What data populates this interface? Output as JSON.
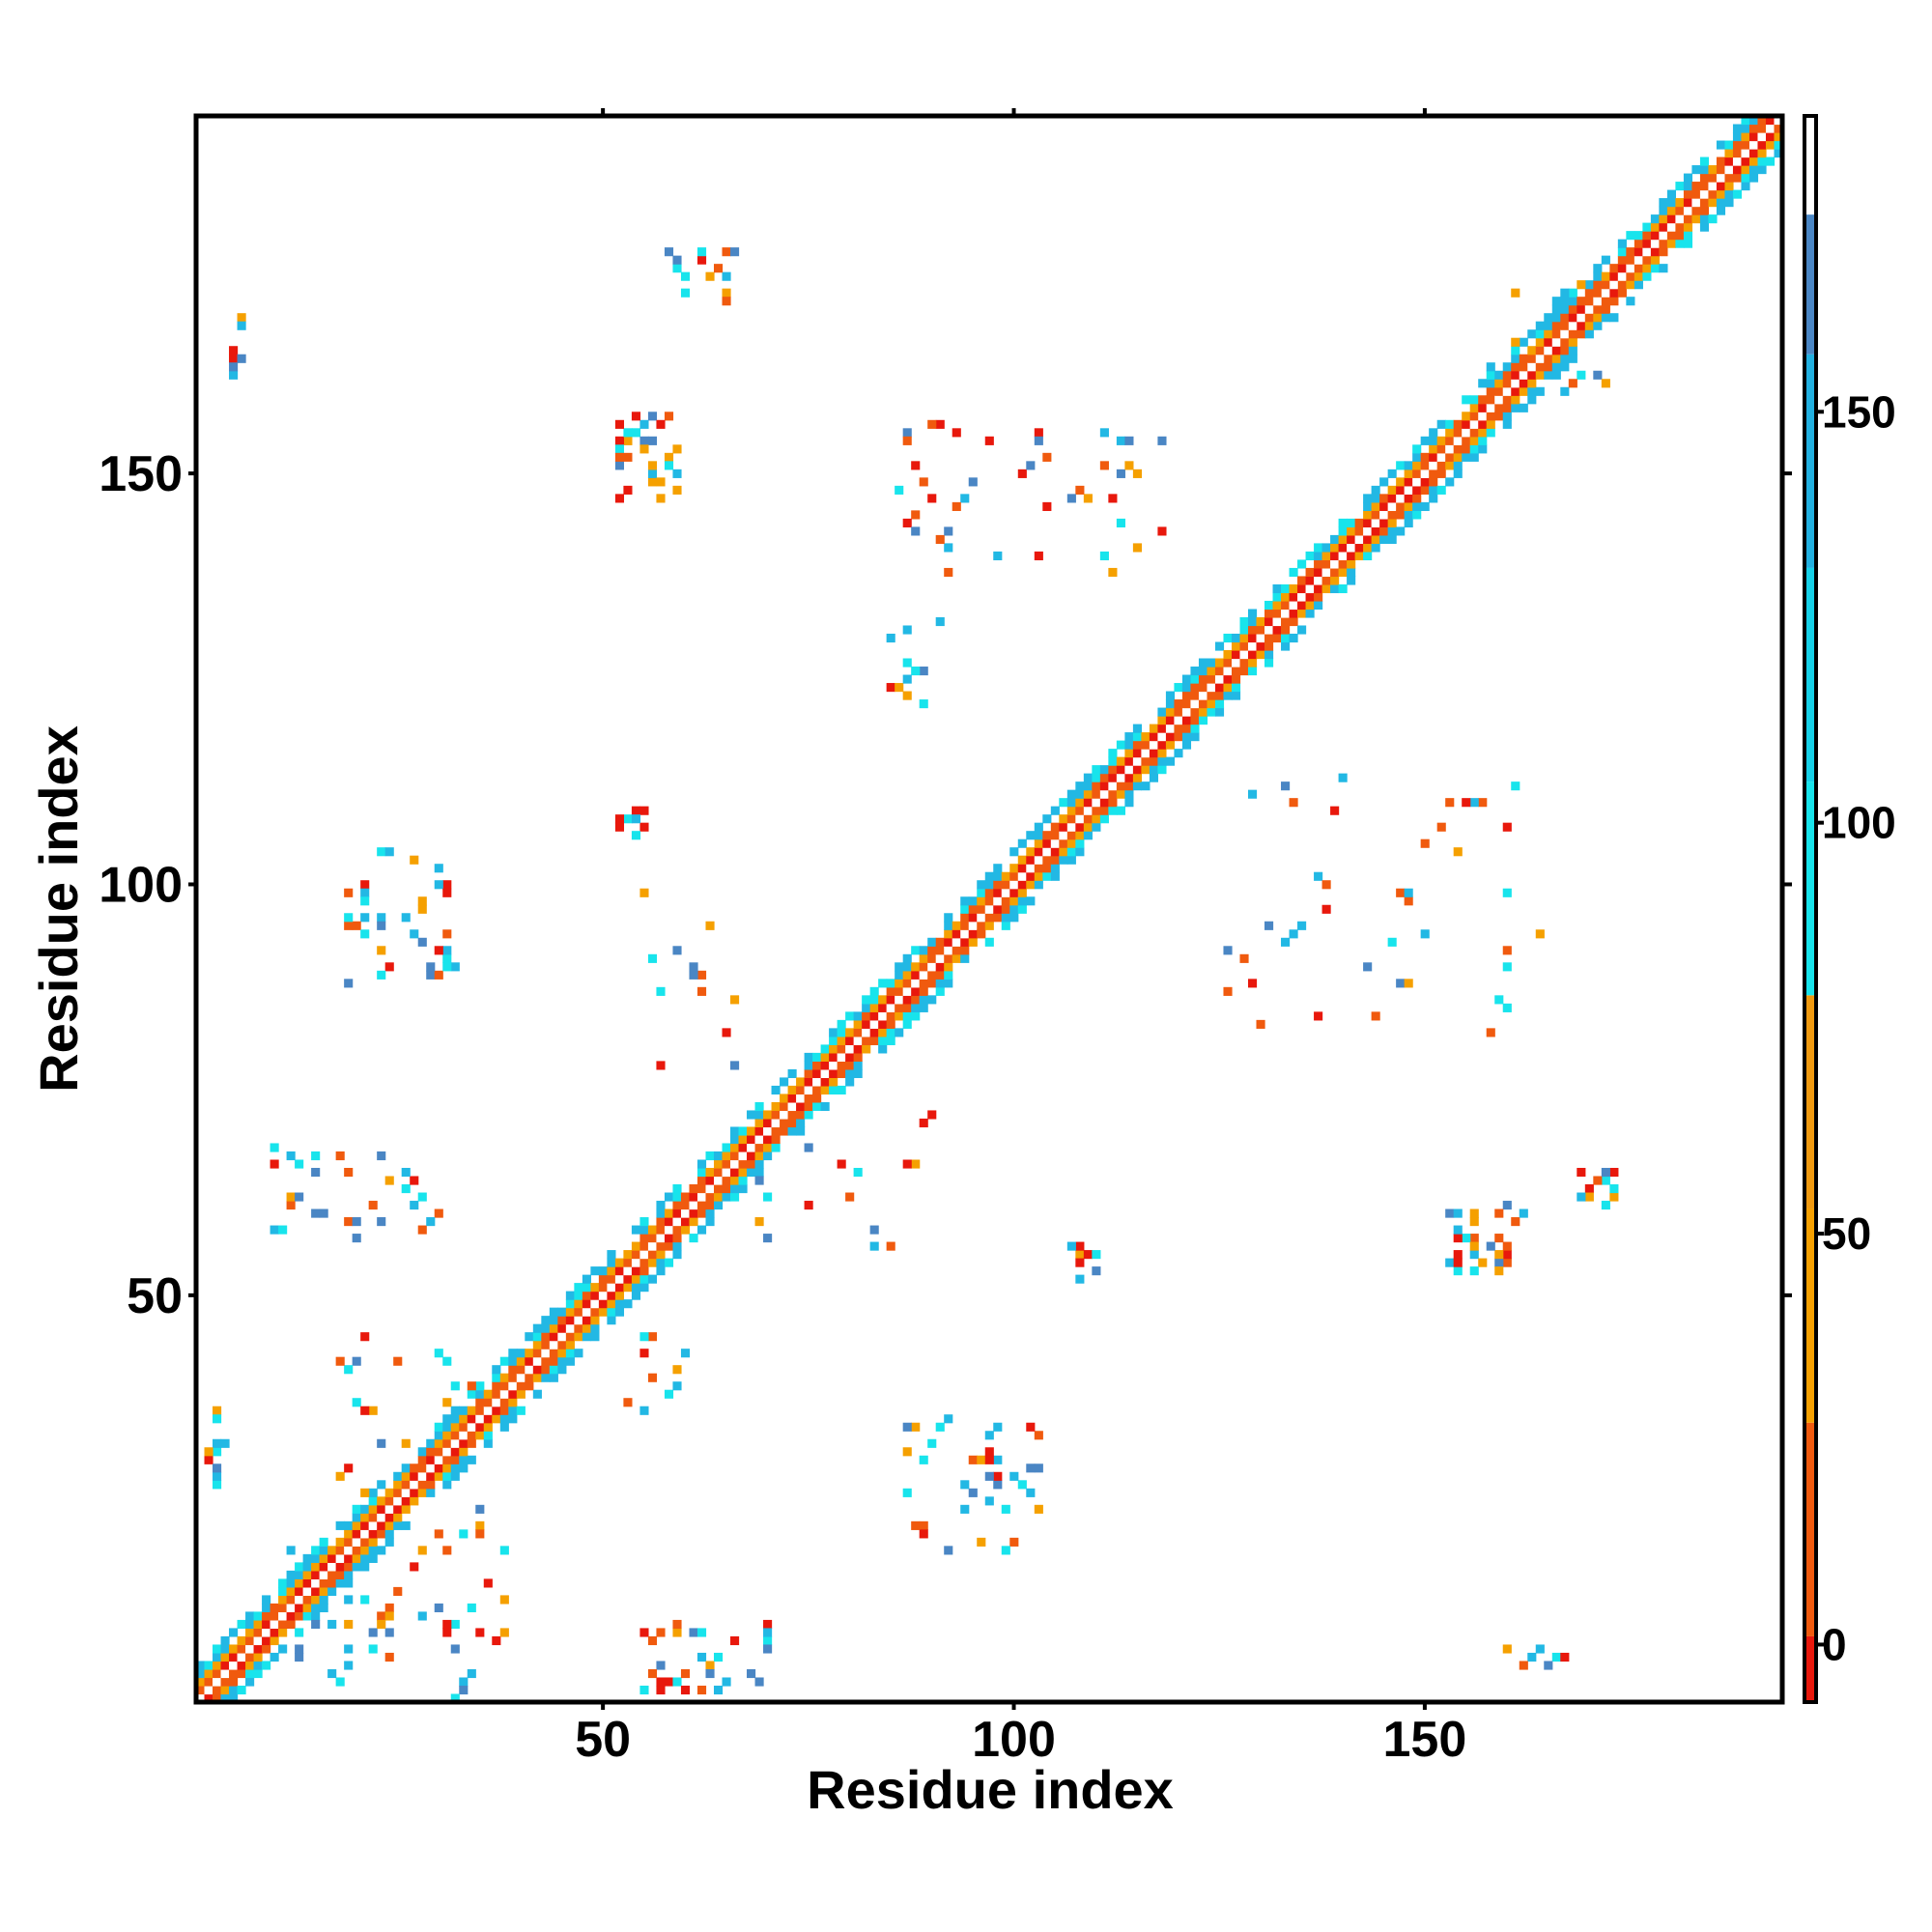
{
  "chart_data": {
    "type": "heatmap",
    "xlabel": "Residue index",
    "ylabel": "Residue index",
    "xlim": [
      1,
      193
    ],
    "ylim": [
      1,
      193
    ],
    "x_ticks": [
      {
        "value": 50,
        "label": "50"
      },
      {
        "value": 100,
        "label": "100"
      },
      {
        "value": 150,
        "label": "150"
      }
    ],
    "y_ticks": [
      {
        "value": 50,
        "label": "50"
      },
      {
        "value": 100,
        "label": "100"
      },
      {
        "value": 150,
        "label": "150"
      }
    ],
    "colorbar": {
      "range": [
        -7,
        186
      ],
      "ticks": [
        {
          "value": 0,
          "label": "0"
        },
        {
          "value": 50,
          "label": "50"
        },
        {
          "value": 100,
          "label": "100"
        },
        {
          "value": 150,
          "label": "150"
        }
      ],
      "bands": [
        {
          "from": -7,
          "to": 1,
          "color": "#e8180c"
        },
        {
          "from": 1,
          "to": 27,
          "color": "#f05a0e"
        },
        {
          "from": 27,
          "to": 53,
          "color": "#f5a000"
        },
        {
          "from": 53,
          "to": 79,
          "color": "#f09a10"
        },
        {
          "from": 79,
          "to": 105,
          "color": "#18e4ec"
        },
        {
          "from": 105,
          "to": 131,
          "color": "#16d0e8"
        },
        {
          "from": 131,
          "to": 157,
          "color": "#22b0e0"
        },
        {
          "from": 157,
          "to": 174,
          "color": "#4a86c4"
        },
        {
          "from": 174,
          "to": 186,
          "color": "#ffffff"
        }
      ]
    },
    "palette": [
      "#e8180c",
      "#f05a0e",
      "#f5a000",
      "#18e4ec",
      "#22b8e4",
      "#4a86c4"
    ],
    "diagonal": {
      "from": 1,
      "to": 193,
      "half_width": 4
    },
    "regions": [
      {
        "x": [
          18,
          36
        ],
        "y": [
          9,
          45
        ],
        "count": 48,
        "seed": 11
      },
      {
        "x": [
          2,
          4
        ],
        "y": [
          24,
          38
        ],
        "count": 14,
        "seed": 12
      },
      {
        "x": [
          9,
          30
        ],
        "y": [
          57,
          68
        ],
        "count": 30,
        "seed": 13
      },
      {
        "x": [
          18,
          33
        ],
        "y": [
          88,
          104
        ],
        "count": 40,
        "seed": 14
      },
      {
        "x": [
          4,
          7
        ],
        "y": [
          162,
          170
        ],
        "count": 8,
        "seed": 15
      },
      {
        "x": [
          52,
          59
        ],
        "y": [
          147,
          158
        ],
        "count": 36,
        "seed": 16
      },
      {
        "x": [
          58,
          66
        ],
        "y": [
          171,
          178
        ],
        "count": 20,
        "seed": 17
      },
      {
        "x": [
          52,
          55
        ],
        "y": [
          106,
          109
        ],
        "count": 8,
        "seed": 18
      },
      {
        "x": [
          55,
          71
        ],
        "y": [
          1,
          10
        ],
        "count": 34,
        "seed": 19
      },
      {
        "x": [
          86,
          103
        ],
        "y": [
          19,
          35
        ],
        "count": 40,
        "seed": 20
      },
      {
        "x": [
          107,
          111
        ],
        "y": [
          52,
          56
        ],
        "count": 8,
        "seed": 21
      },
      {
        "x": [
          86,
          118
        ],
        "y": [
          138,
          157
        ],
        "count": 46,
        "seed": 22
      },
      {
        "x": [
          83,
          92
        ],
        "y": [
          122,
          132
        ],
        "count": 12,
        "seed": 23
      },
      {
        "x": [
          124,
          166
        ],
        "y": [
          82,
          113
        ],
        "count": 44,
        "seed": 24
      },
      {
        "x": [
          151,
          162
        ],
        "y": [
          53,
          62
        ],
        "count": 34,
        "seed": 25
      },
      {
        "x": [
          168,
          173
        ],
        "y": [
          61,
          66
        ],
        "count": 12,
        "seed": 26
      },
      {
        "x": [
          158,
          168
        ],
        "y": [
          5,
          7
        ],
        "count": 8,
        "seed": 27
      },
      {
        "x": [
          158,
          172
        ],
        "y": [
          160,
          174
        ],
        "count": 22,
        "seed": 28
      },
      {
        "x": [
          68,
          92
        ],
        "y": [
          55,
          73
        ],
        "count": 16,
        "seed": 29
      },
      {
        "x": [
          52,
          60
        ],
        "y": [
          36,
          45
        ],
        "count": 10,
        "seed": 30
      },
      {
        "x": [
          10,
          40
        ],
        "y": [
          1,
          22
        ],
        "count": 40,
        "seed": 31
      },
      {
        "x": [
          55,
          68
        ],
        "y": [
          76,
          100
        ],
        "count": 14,
        "seed": 32
      }
    ]
  }
}
